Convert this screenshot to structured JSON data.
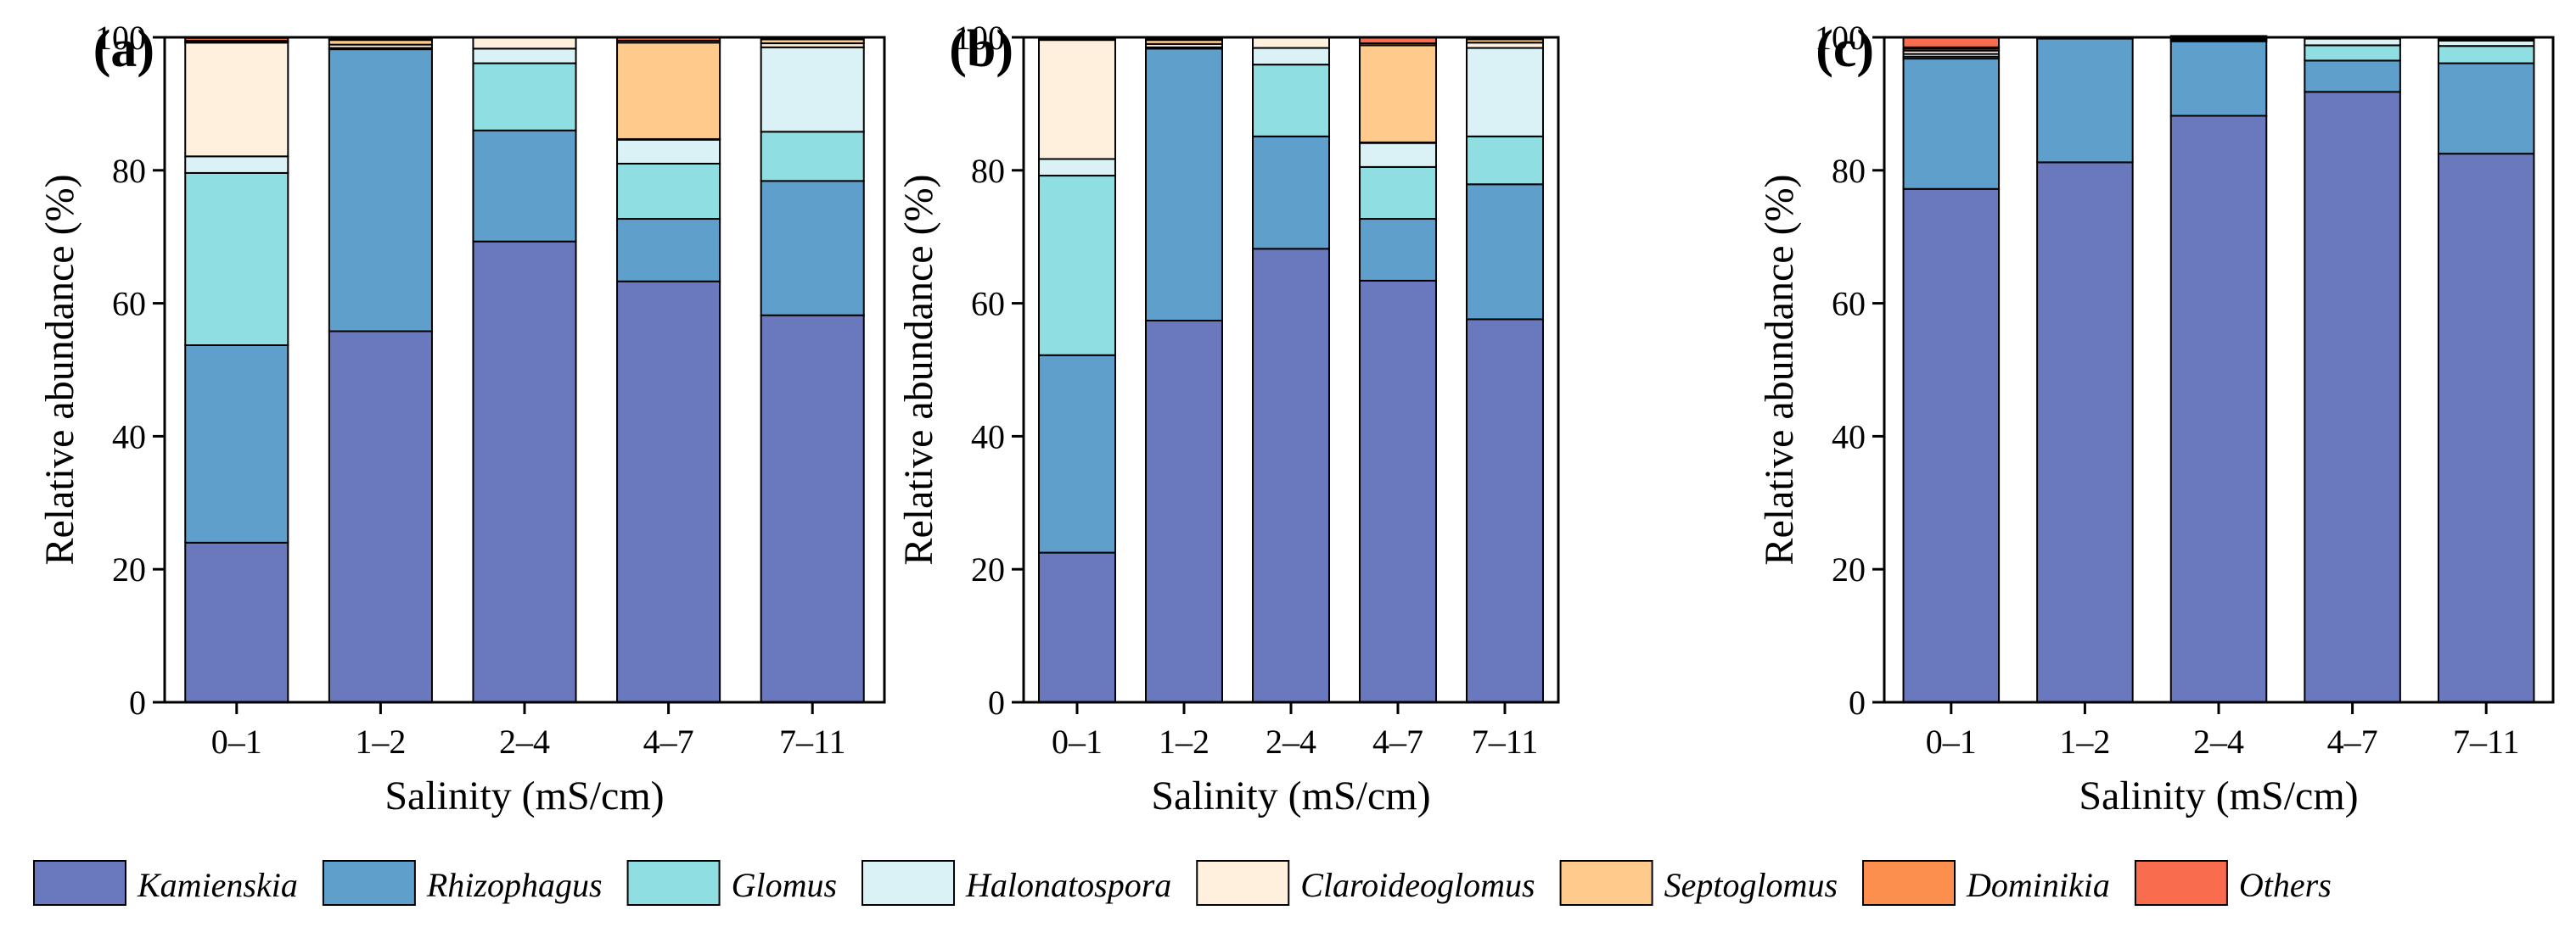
{
  "legend": [
    {
      "name": "Kamienskia",
      "color": "#6a78bd"
    },
    {
      "name": "Rhizophagus",
      "color": "#5f9fcb"
    },
    {
      "name": "Glomus",
      "color": "#8fdfe2"
    },
    {
      "name": "Halonatospora",
      "color": "#daf2f5"
    },
    {
      "name": "Claroideoglomus",
      "color": "#fff0de"
    },
    {
      "name": "Septoglomus",
      "color": "#fecb8d"
    },
    {
      "name": "Dominikia",
      "color": "#fc8e4e"
    },
    {
      "name": "Others",
      "color": "#f96c4d"
    }
  ],
  "chart_data": [
    {
      "type": "bar",
      "stacked": true,
      "panel": "(a)",
      "xlabel": "Salinity (mS/cm)",
      "ylabel": "Relative abundance (%)",
      "ylim": [
        0,
        100
      ],
      "yticks": [
        0,
        20,
        40,
        60,
        80,
        100
      ],
      "categories": [
        "0–1",
        "1–2",
        "2–4",
        "4–7",
        "7–11"
      ],
      "series": [
        {
          "name": "Kamienskia",
          "values": [
            24.0,
            55.8,
            69.3,
            63.3,
            58.2
          ]
        },
        {
          "name": "Rhizophagus",
          "values": [
            29.7,
            42.4,
            16.7,
            9.4,
            20.2
          ]
        },
        {
          "name": "Glomus",
          "values": [
            25.9,
            0.0,
            10.1,
            8.3,
            7.4
          ]
        },
        {
          "name": "Halonatospora",
          "values": [
            2.5,
            0.2,
            2.2,
            3.6,
            12.7
          ]
        },
        {
          "name": "Claroideoglomus",
          "values": [
            17.1,
            0.5,
            1.7,
            0.1,
            0.6
          ]
        },
        {
          "name": "Septoglomus",
          "values": [
            0.1,
            0.7,
            0.0,
            14.5,
            0.6
          ]
        },
        {
          "name": "Dominikia",
          "values": [
            0.2,
            0.2,
            0.0,
            0.3,
            0.2
          ]
        },
        {
          "name": "Others",
          "values": [
            0.4,
            0.2,
            0.0,
            0.5,
            0.1
          ]
        }
      ]
    },
    {
      "type": "bar",
      "stacked": true,
      "panel": "(b)",
      "xlabel": "Salinity (mS/cm)",
      "ylabel": "Relative abundance (%)",
      "ylim": [
        0,
        100
      ],
      "yticks": [
        0,
        20,
        40,
        60,
        80,
        100
      ],
      "categories": [
        "0–1",
        "1–2",
        "2–4",
        "4–7",
        "7–11"
      ],
      "series": [
        {
          "name": "Kamienskia",
          "values": [
            22.5,
            57.4,
            68.2,
            63.4,
            57.6
          ]
        },
        {
          "name": "Rhizophagus",
          "values": [
            29.7,
            40.9,
            16.9,
            9.3,
            20.3
          ]
        },
        {
          "name": "Glomus",
          "values": [
            27.0,
            0.0,
            10.8,
            7.8,
            7.2
          ]
        },
        {
          "name": "Halonatospora",
          "values": [
            2.5,
            0.2,
            2.5,
            3.6,
            13.3
          ]
        },
        {
          "name": "Claroideoglomus",
          "values": [
            17.9,
            0.5,
            1.6,
            0.1,
            0.8
          ]
        },
        {
          "name": "Septoglomus",
          "values": [
            0.1,
            0.6,
            0.0,
            14.6,
            0.5
          ]
        },
        {
          "name": "Dominikia",
          "values": [
            0.2,
            0.2,
            0.0,
            0.3,
            0.2
          ]
        },
        {
          "name": "Others",
          "values": [
            0.1,
            0.2,
            0.0,
            0.9,
            0.1
          ]
        }
      ]
    },
    {
      "type": "bar",
      "stacked": true,
      "panel": "(c)",
      "xlabel": "Salinity (mS/cm)",
      "ylabel": "Relative abundance (%)",
      "ylim": [
        0,
        100
      ],
      "yticks": [
        0,
        20,
        40,
        60,
        80,
        100
      ],
      "categories": [
        "0–1",
        "1–2",
        "2–4",
        "4–7",
        "7–11"
      ],
      "series": [
        {
          "name": "Kamienskia",
          "values": [
            77.2,
            81.2,
            88.2,
            91.8,
            82.5
          ]
        },
        {
          "name": "Rhizophagus",
          "values": [
            19.6,
            18.6,
            11.2,
            4.7,
            13.6
          ]
        },
        {
          "name": "Glomus",
          "values": [
            0.3,
            0.0,
            0.2,
            2.3,
            2.6
          ]
        },
        {
          "name": "Halonatospora",
          "values": [
            0.4,
            0.0,
            0.2,
            1.0,
            0.8
          ]
        },
        {
          "name": "Claroideoglomus",
          "values": [
            0.5,
            0.1,
            0.1,
            0.1,
            0.2
          ]
        },
        {
          "name": "Septoglomus",
          "values": [
            0.3,
            0.0,
            0.0,
            0.0,
            0.1
          ]
        },
        {
          "name": "Dominikia",
          "values": [
            0.2,
            0.0,
            0.0,
            0.0,
            0.1
          ]
        },
        {
          "name": "Others",
          "values": [
            1.5,
            0.1,
            0.3,
            0.1,
            0.1
          ]
        }
      ]
    }
  ]
}
